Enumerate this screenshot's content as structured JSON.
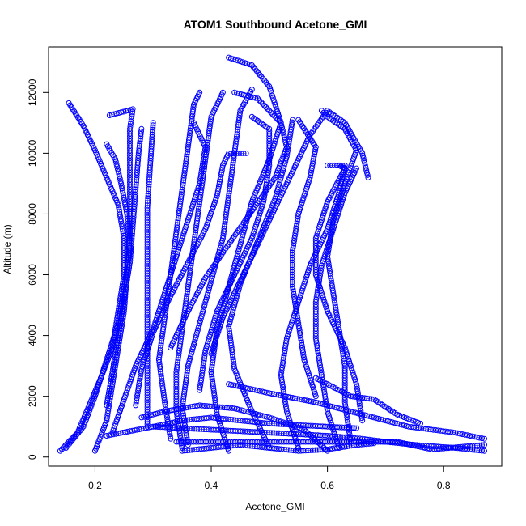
{
  "chart_data": {
    "type": "scatter",
    "title": "ATOM1 Southbound Acetone_GMI",
    "xlabel": "Acetone_GMI",
    "ylabel": "Altitude (m)",
    "xlim": [
      0.12,
      0.9
    ],
    "ylim": [
      -300,
      13500
    ],
    "x_ticks": [
      0.2,
      0.4,
      0.6,
      0.8
    ],
    "x_tick_labels": [
      "0.2",
      "0.4",
      "0.6",
      "0.8"
    ],
    "y_ticks": [
      0,
      2000,
      4000,
      6000,
      8000,
      10000,
      12000
    ],
    "y_tick_labels": [
      "0",
      "2000",
      "4000",
      "6000",
      "8000",
      "10000",
      "12000"
    ],
    "grid": false,
    "legend": "none",
    "marker": "open-circle",
    "color": "#0000ff",
    "series": [
      {
        "points": [
          [
            0.14,
            200
          ],
          [
            0.17,
            800
          ],
          [
            0.19,
            1700
          ],
          [
            0.21,
            2600
          ],
          [
            0.23,
            3600
          ],
          [
            0.24,
            4800
          ],
          [
            0.25,
            6000
          ],
          [
            0.25,
            7200
          ],
          [
            0.24,
            8300
          ],
          [
            0.22,
            9200
          ],
          [
            0.2,
            10100
          ],
          [
            0.18,
            10900
          ],
          [
            0.155,
            11650
          ]
        ]
      },
      {
        "points": [
          [
            0.15,
            300
          ],
          [
            0.18,
            1000
          ],
          [
            0.2,
            2000
          ],
          [
            0.22,
            3200
          ],
          [
            0.24,
            4400
          ],
          [
            0.25,
            5600
          ],
          [
            0.26,
            6800
          ],
          [
            0.255,
            8000
          ],
          [
            0.245,
            9000
          ],
          [
            0.235,
            9800
          ],
          [
            0.22,
            10300
          ]
        ]
      },
      {
        "points": [
          [
            0.2,
            200
          ],
          [
            0.22,
            1200
          ],
          [
            0.23,
            2400
          ],
          [
            0.24,
            3600
          ],
          [
            0.25,
            4800
          ],
          [
            0.255,
            6000
          ],
          [
            0.26,
            7200
          ],
          [
            0.26,
            8400
          ],
          [
            0.26,
            9600
          ],
          [
            0.26,
            10800
          ],
          [
            0.265,
            11450
          ],
          [
            0.225,
            11250
          ]
        ]
      },
      {
        "points": [
          [
            0.22,
            1700
          ],
          [
            0.23,
            2800
          ],
          [
            0.24,
            4000
          ],
          [
            0.25,
            5200
          ],
          [
            0.26,
            6400
          ],
          [
            0.265,
            7600
          ],
          [
            0.27,
            8800
          ],
          [
            0.275,
            10000
          ],
          [
            0.28,
            10800
          ]
        ]
      },
      {
        "points": [
          [
            0.29,
            1000
          ],
          [
            0.29,
            2200
          ],
          [
            0.29,
            3400
          ],
          [
            0.29,
            4600
          ],
          [
            0.29,
            5800
          ],
          [
            0.29,
            7000
          ],
          [
            0.29,
            8200
          ],
          [
            0.295,
            9600
          ],
          [
            0.3,
            11000
          ]
        ]
      },
      {
        "points": [
          [
            0.33,
            600
          ],
          [
            0.32,
            1800
          ],
          [
            0.31,
            3200
          ],
          [
            0.32,
            4600
          ],
          [
            0.33,
            6000
          ],
          [
            0.34,
            7400
          ],
          [
            0.35,
            8800
          ],
          [
            0.36,
            10200
          ],
          [
            0.37,
            11600
          ],
          [
            0.38,
            12000
          ]
        ]
      },
      {
        "points": [
          [
            0.35,
            300
          ],
          [
            0.34,
            1500
          ],
          [
            0.34,
            2800
          ],
          [
            0.35,
            4200
          ],
          [
            0.36,
            5600
          ],
          [
            0.37,
            7000
          ],
          [
            0.38,
            8400
          ],
          [
            0.39,
            9800
          ],
          [
            0.4,
            11200
          ],
          [
            0.42,
            12000
          ]
        ]
      },
      {
        "points": [
          [
            0.36,
            400
          ],
          [
            0.35,
            1600
          ],
          [
            0.36,
            3000
          ],
          [
            0.38,
            4400
          ],
          [
            0.4,
            5800
          ],
          [
            0.42,
            7200
          ],
          [
            0.43,
            8600
          ],
          [
            0.44,
            10000
          ],
          [
            0.45,
            11400
          ],
          [
            0.47,
            12100
          ]
        ]
      },
      {
        "points": [
          [
            0.43,
            200
          ],
          [
            0.41,
            1400
          ],
          [
            0.4,
            2800
          ],
          [
            0.41,
            4200
          ],
          [
            0.43,
            5600
          ],
          [
            0.45,
            7000
          ],
          [
            0.47,
            8400
          ],
          [
            0.5,
            9800
          ],
          [
            0.52,
            11000
          ],
          [
            0.5,
            12200
          ],
          [
            0.47,
            12900
          ],
          [
            0.43,
            13150
          ]
        ]
      },
      {
        "points": [
          [
            0.5,
            300
          ],
          [
            0.47,
            1500
          ],
          [
            0.44,
            2900
          ],
          [
            0.43,
            4300
          ],
          [
            0.45,
            5700
          ],
          [
            0.48,
            7100
          ],
          [
            0.51,
            8500
          ],
          [
            0.53,
            9900
          ],
          [
            0.54,
            11100
          ]
        ]
      },
      {
        "points": [
          [
            0.55,
            300
          ],
          [
            0.53,
            1500
          ],
          [
            0.52,
            2700
          ],
          [
            0.53,
            3900
          ],
          [
            0.55,
            5100
          ],
          [
            0.57,
            6300
          ],
          [
            0.6,
            7500
          ],
          [
            0.62,
            8700
          ],
          [
            0.63,
            9600
          ],
          [
            0.6,
            9600
          ]
        ]
      },
      {
        "points": [
          [
            0.62,
            300
          ],
          [
            0.6,
            1500
          ],
          [
            0.59,
            2700
          ],
          [
            0.58,
            3900
          ],
          [
            0.58,
            5100
          ],
          [
            0.59,
            6300
          ],
          [
            0.61,
            7500
          ],
          [
            0.63,
            8700
          ],
          [
            0.65,
            9500
          ]
        ]
      },
      {
        "points": [
          [
            0.64,
            500
          ],
          [
            0.63,
            1800
          ],
          [
            0.63,
            3000
          ],
          [
            0.62,
            4200
          ],
          [
            0.61,
            5400
          ],
          [
            0.6,
            6600
          ],
          [
            0.61,
            7800
          ],
          [
            0.63,
            9000
          ],
          [
            0.65,
            10100
          ],
          [
            0.63,
            10800
          ],
          [
            0.6,
            11200
          ],
          [
            0.59,
            11400
          ]
        ]
      },
      {
        "points": [
          [
            0.66,
            1200
          ],
          [
            0.65,
            2400
          ],
          [
            0.63,
            3600
          ],
          [
            0.6,
            4800
          ],
          [
            0.58,
            6000
          ],
          [
            0.58,
            7200
          ],
          [
            0.6,
            8400
          ],
          [
            0.63,
            9500
          ],
          [
            0.62,
            9600
          ]
        ]
      },
      {
        "points": [
          [
            0.58,
            2000
          ],
          [
            0.56,
            3200
          ],
          [
            0.55,
            4400
          ],
          [
            0.54,
            5600
          ],
          [
            0.54,
            6800
          ],
          [
            0.55,
            8000
          ],
          [
            0.57,
            9200
          ],
          [
            0.58,
            10200
          ],
          [
            0.55,
            11100
          ]
        ]
      },
      {
        "points": [
          [
            0.4,
            3400
          ],
          [
            0.42,
            4600
          ],
          [
            0.45,
            5800
          ],
          [
            0.48,
            7000
          ],
          [
            0.51,
            8200
          ],
          [
            0.54,
            9400
          ],
          [
            0.57,
            10600
          ],
          [
            0.6,
            11400
          ],
          [
            0.63,
            11000
          ],
          [
            0.66,
            10000
          ],
          [
            0.67,
            9200
          ]
        ]
      },
      {
        "points": [
          [
            0.33,
            3600
          ],
          [
            0.36,
            4800
          ],
          [
            0.39,
            5900
          ],
          [
            0.43,
            7000
          ],
          [
            0.47,
            8100
          ],
          [
            0.51,
            9200
          ],
          [
            0.53,
            10200
          ],
          [
            0.52,
            11000
          ],
          [
            0.48,
            11800
          ],
          [
            0.44,
            12000
          ]
        ]
      },
      {
        "points": [
          [
            0.38,
            2200
          ],
          [
            0.39,
            3500
          ],
          [
            0.41,
            4800
          ],
          [
            0.44,
            6000
          ],
          [
            0.47,
            7200
          ],
          [
            0.49,
            8400
          ],
          [
            0.5,
            9600
          ],
          [
            0.5,
            10800
          ],
          [
            0.47,
            11200
          ]
        ]
      },
      {
        "points": [
          [
            0.27,
            1700
          ],
          [
            0.28,
            2900
          ],
          [
            0.3,
            4100
          ],
          [
            0.33,
            5300
          ],
          [
            0.36,
            6400
          ],
          [
            0.39,
            7500
          ],
          [
            0.41,
            8600
          ],
          [
            0.42,
            9600
          ],
          [
            0.43,
            10000
          ],
          [
            0.46,
            10000
          ]
        ]
      },
      {
        "points": [
          [
            0.23,
            800
          ],
          [
            0.25,
            1900
          ],
          [
            0.27,
            3000
          ],
          [
            0.3,
            4200
          ],
          [
            0.32,
            5400
          ],
          [
            0.34,
            6600
          ],
          [
            0.36,
            7800
          ],
          [
            0.38,
            9000
          ],
          [
            0.39,
            10200
          ],
          [
            0.37,
            11000
          ]
        ]
      },
      {
        "points": [
          [
            0.6,
            200
          ],
          [
            0.56,
            900
          ],
          [
            0.5,
            1300
          ],
          [
            0.44,
            1600
          ],
          [
            0.38,
            1700
          ],
          [
            0.32,
            1500
          ],
          [
            0.28,
            1300
          ]
        ]
      },
      {
        "points": [
          [
            0.22,
            700
          ],
          [
            0.3,
            1000
          ],
          [
            0.4,
            900
          ],
          [
            0.5,
            800
          ],
          [
            0.6,
            700
          ],
          [
            0.66,
            600
          ],
          [
            0.7,
            500
          ],
          [
            0.75,
            400
          ],
          [
            0.82,
            300
          ],
          [
            0.87,
            200
          ]
        ]
      },
      {
        "points": [
          [
            0.34,
            500
          ],
          [
            0.45,
            500
          ],
          [
            0.55,
            500
          ],
          [
            0.65,
            500
          ],
          [
            0.72,
            500
          ],
          [
            0.78,
            250
          ],
          [
            0.87,
            400
          ]
        ]
      },
      {
        "points": [
          [
            0.43,
            2400
          ],
          [
            0.5,
            2100
          ],
          [
            0.58,
            1800
          ],
          [
            0.66,
            1400
          ],
          [
            0.74,
            1000
          ],
          [
            0.82,
            800
          ],
          [
            0.87,
            600
          ]
        ]
      },
      {
        "points": [
          [
            0.58,
            2600
          ],
          [
            0.64,
            2000
          ],
          [
            0.68,
            1900
          ],
          [
            0.72,
            1400
          ],
          [
            0.76,
            1100
          ]
        ]
      },
      {
        "points": [
          [
            0.3,
            1000
          ],
          [
            0.35,
            1200
          ],
          [
            0.4,
            1300
          ],
          [
            0.45,
            1200
          ],
          [
            0.5,
            1100
          ],
          [
            0.55,
            1050
          ],
          [
            0.6,
            1000
          ],
          [
            0.65,
            950
          ]
        ]
      },
      {
        "points": [
          [
            0.35,
            200
          ],
          [
            0.4,
            300
          ],
          [
            0.45,
            400
          ],
          [
            0.5,
            300
          ],
          [
            0.55,
            200
          ],
          [
            0.6,
            250
          ],
          [
            0.65,
            400
          ],
          [
            0.68,
            450
          ]
        ]
      }
    ]
  }
}
